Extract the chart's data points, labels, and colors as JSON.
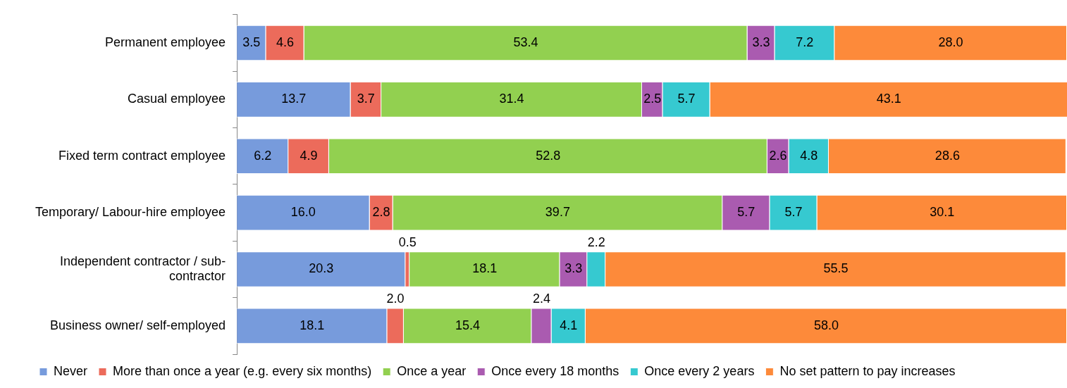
{
  "chart_data": {
    "type": "bar",
    "orientation": "horizontal",
    "stacked": true,
    "xlim": [
      0,
      100
    ],
    "tick_labels": "y",
    "legend": "bottom",
    "categories": [
      "Permanent employee",
      "Casual employee",
      "Fixed term contract employee",
      "Temporary/ Labour-hire employee",
      "Independent contractor / sub-contractor",
      "Business owner/ self-employed"
    ],
    "series": [
      {
        "name": "Never",
        "color": "#779bdc",
        "values": [
          3.5,
          13.7,
          6.2,
          16.0,
          20.3,
          18.1
        ],
        "value_labels": [
          "3.5",
          "13.7",
          "6.2",
          "16.0",
          "20.3",
          "18.1"
        ]
      },
      {
        "name": "More than once a year (e.g. every six months)",
        "color": "#ec6b5b",
        "values": [
          4.6,
          3.7,
          4.9,
          2.8,
          0.5,
          2.0
        ],
        "value_labels": [
          "4.6",
          "3.7",
          "4.9",
          "2.8",
          "0.5",
          "2.0"
        ]
      },
      {
        "name": "Once a year",
        "color": "#92d050",
        "values": [
          53.4,
          31.4,
          52.8,
          39.7,
          18.1,
          15.4
        ],
        "value_labels": [
          "53.4",
          "31.4",
          "52.8",
          "39.7",
          "18.1",
          "15.4"
        ]
      },
      {
        "name": "Once every 18 months",
        "color": "#aa5bb0",
        "values": [
          3.3,
          2.5,
          2.6,
          5.7,
          3.3,
          2.4
        ],
        "value_labels": [
          "3.3",
          "2.5",
          "2.6",
          "5.7",
          "3.3",
          "2.4"
        ]
      },
      {
        "name": "Once every 2 years",
        "color": "#36c9d0",
        "values": [
          7.2,
          5.7,
          4.8,
          5.7,
          2.2,
          4.1
        ],
        "value_labels": [
          "7.2",
          "5.7",
          "4.8",
          "5.7",
          "2.2",
          "4.1"
        ]
      },
      {
        "name": "No set pattern to pay increases",
        "color": "#fd8a3a",
        "values": [
          28.0,
          43.1,
          28.6,
          30.1,
          55.5,
          58.0
        ],
        "value_labels": [
          "28.0",
          "43.1",
          "28.6",
          "30.1",
          "55.5",
          "58.0"
        ]
      }
    ]
  }
}
